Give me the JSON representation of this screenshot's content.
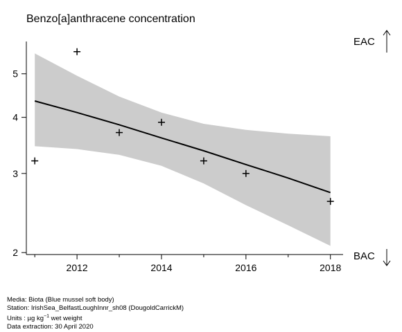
{
  "chart_data": {
    "type": "scatter",
    "title": "Benzo[a]anthracene concentration",
    "xlabel": "",
    "ylabel": "",
    "y_scale": "log",
    "xlim": [
      2010.8,
      2018.3
    ],
    "ylim": [
      1.98,
      5.9
    ],
    "x_ticks_major": [
      2012,
      2014,
      2016,
      2018
    ],
    "x_ticks_minor": [
      2011,
      2013,
      2015,
      2017
    ],
    "y_ticks": [
      2,
      3,
      4,
      5
    ],
    "points": [
      {
        "x": 2011,
        "y": 3.2
      },
      {
        "x": 2012,
        "y": 5.6
      },
      {
        "x": 2013,
        "y": 3.7
      },
      {
        "x": 2014,
        "y": 3.9
      },
      {
        "x": 2015,
        "y": 3.2
      },
      {
        "x": 2016,
        "y": 3.0
      },
      {
        "x": 2018,
        "y": 2.6
      }
    ],
    "trend": {
      "x": [
        2011,
        2012,
        2013,
        2014,
        2015,
        2016,
        2017,
        2018
      ],
      "fit": [
        4.35,
        4.1,
        3.85,
        3.6,
        3.37,
        3.14,
        2.93,
        2.72
      ],
      "lower": [
        3.45,
        3.4,
        3.3,
        3.12,
        2.85,
        2.55,
        2.3,
        2.07
      ],
      "upper": [
        5.55,
        4.95,
        4.45,
        4.1,
        3.87,
        3.75,
        3.68,
        3.63
      ]
    },
    "band_color": "#cccccc",
    "line_color": "#000000",
    "right_labels": {
      "top": "EAC",
      "bottom": "BAC"
    }
  },
  "footer": {
    "media": "Media: Biota (Blue mussel soft body)",
    "station": "Station: IrishSea_BelfastLoughInnr_sh08 (DougoldCarrickM)",
    "units_prefix": "Units : µg kg",
    "units_exp": "−1",
    "units_suffix": " wet weight",
    "extraction": "Data extraction: 30 April 2020"
  }
}
